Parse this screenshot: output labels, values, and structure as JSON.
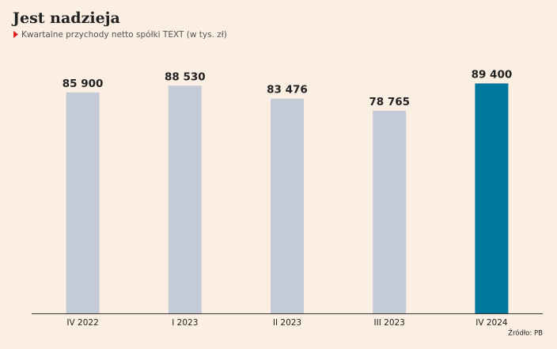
{
  "chart_data": {
    "type": "bar",
    "title": "Jest nadzieja",
    "subtitle": "Kwartalne przychody netto spółki TEXT (w tys. zł)",
    "categories": [
      "IV 2022",
      "I 2023",
      "II 2023",
      "III 2023",
      "IV 2024"
    ],
    "values": [
      85900,
      88530,
      83476,
      78765,
      89400
    ],
    "value_labels": [
      "85 900",
      "88 530",
      "83 476",
      "78 765",
      "89 400"
    ],
    "colors": [
      "#c5cad9",
      "#c5cad9",
      "#c5cad9",
      "#c5cad9",
      "#00779e"
    ],
    "ylim": [
      0,
      100000
    ],
    "source": "Źródło: PB"
  }
}
